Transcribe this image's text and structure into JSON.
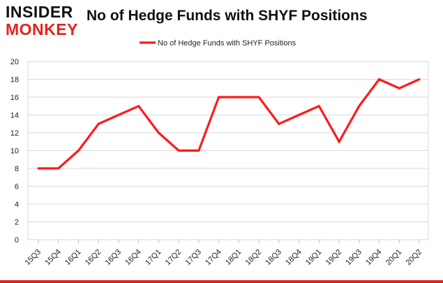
{
  "logo": {
    "line1": "INSIDER",
    "line2": "MONKEY"
  },
  "colors": {
    "series": "#ff1a1a",
    "brand_red": "#e2231a",
    "grid": "#d9d9d9"
  },
  "chart_data": {
    "type": "line",
    "title": "No of Hedge Funds with SHYF Positions",
    "xlabel": "",
    "ylabel": "",
    "ylim": [
      0,
      20
    ],
    "yticks": [
      0,
      2,
      4,
      6,
      8,
      10,
      12,
      14,
      16,
      18,
      20
    ],
    "grid": true,
    "legend_position": "top-center",
    "categories": [
      "15Q3",
      "15Q4",
      "16Q1",
      "16Q2",
      "16Q3",
      "16Q4",
      "17Q1",
      "17Q2",
      "17Q3",
      "17Q4",
      "18Q1",
      "18Q2",
      "18Q3",
      "18Q4",
      "19Q1",
      "19Q2",
      "19Q3",
      "19Q4",
      "20Q1",
      "20Q2"
    ],
    "series": [
      {
        "name": "No of Hedge Funds with SHYF Positions",
        "values": [
          8,
          8,
          10,
          13,
          14,
          15,
          12,
          10,
          10,
          16,
          16,
          16,
          13,
          14,
          15,
          11,
          15,
          18,
          17,
          18
        ]
      }
    ]
  }
}
